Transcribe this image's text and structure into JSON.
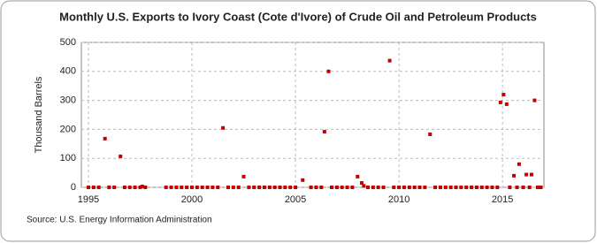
{
  "chart_data": {
    "type": "scatter",
    "title": "Monthly U.S. Exports to Ivory Coast (Cote d'Ivore) of Crude Oil and Petroleum Products",
    "y_label": "Thousand Barrels",
    "source": "Source: U.S. Energy Information Administration",
    "color": "#c00000",
    "grid": true,
    "xlim": [
      1994.66,
      2017.0
    ],
    "xticks": [
      1995,
      2000,
      2005,
      2010,
      2015
    ],
    "ylim": [
      0,
      500
    ],
    "yticks": [
      0,
      100,
      200,
      300,
      400,
      500
    ],
    "x": [
      1995.8,
      1996.55,
      2001.5,
      2002.5,
      2005.35,
      2006.4,
      2006.6,
      2008.0,
      2008.2,
      2008.3,
      2009.55,
      2011.5,
      2014.9,
      2015.05,
      2015.2,
      2015.55,
      2015.8,
      2016.15,
      2016.4,
      2016.55,
      1997.6,
      1995.0,
      1995.25,
      1995.5,
      1996.0,
      1996.25,
      1996.75,
      1997.0,
      1997.25,
      1997.5,
      1997.75,
      1998.75,
      1999.0,
      1999.25,
      1999.5,
      1999.75,
      2000.0,
      2000.25,
      2000.5,
      2000.75,
      2001.0,
      2001.25,
      2001.75,
      2002.0,
      2002.25,
      2002.75,
      2003.0,
      2003.25,
      2003.5,
      2003.75,
      2004.0,
      2004.25,
      2004.5,
      2004.75,
      2005.0,
      2005.75,
      2006.0,
      2006.25,
      2006.75,
      2007.0,
      2007.25,
      2007.5,
      2007.75,
      2008.5,
      2008.75,
      2009.0,
      2009.25,
      2009.75,
      2010.0,
      2010.25,
      2010.5,
      2010.75,
      2011.0,
      2011.25,
      2011.75,
      2012.0,
      2012.25,
      2012.5,
      2012.75,
      2013.0,
      2013.25,
      2013.5,
      2013.75,
      2014.0,
      2014.25,
      2014.5,
      2014.75,
      2015.35,
      2015.7,
      2016.0,
      2016.3,
      2016.7,
      2016.85
    ],
    "values": [
      168,
      107,
      205,
      37,
      25,
      192,
      400,
      37,
      15,
      5,
      437,
      183,
      293,
      320,
      287,
      40,
      80,
      44,
      44,
      300,
      3,
      0,
      0,
      0,
      0,
      0,
      0,
      0,
      0,
      0,
      0,
      0,
      0,
      0,
      0,
      0,
      0,
      0,
      0,
      0,
      0,
      0,
      0,
      0,
      0,
      0,
      0,
      0,
      0,
      0,
      0,
      0,
      0,
      0,
      0,
      0,
      0,
      0,
      0,
      0,
      0,
      0,
      0,
      0,
      0,
      0,
      0,
      0,
      0,
      0,
      0,
      0,
      0,
      0,
      0,
      0,
      0,
      0,
      0,
      0,
      0,
      0,
      0,
      0,
      0,
      0,
      0,
      0,
      0,
      0,
      0,
      0,
      0
    ]
  }
}
